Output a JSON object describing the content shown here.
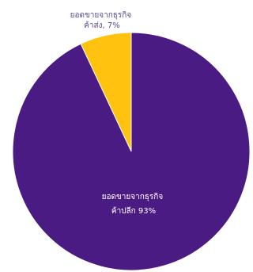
{
  "chart_data": {
    "type": "pie",
    "slices": [
      {
        "label_line1": "ยอดขายจากธุรกิจ",
        "label_line2": "ค้าส่ง, 7%",
        "value": 7,
        "color": "#ffc20e"
      },
      {
        "label_line1": "ยอดขายจากธุรกิจ",
        "label_line2": "ค้าปลีก 93%",
        "value": 93,
        "color": "#4b1b84"
      }
    ],
    "label_colors": {
      "outside": "#5b4a8b",
      "inside": "#ffffff"
    },
    "legend": "none"
  }
}
